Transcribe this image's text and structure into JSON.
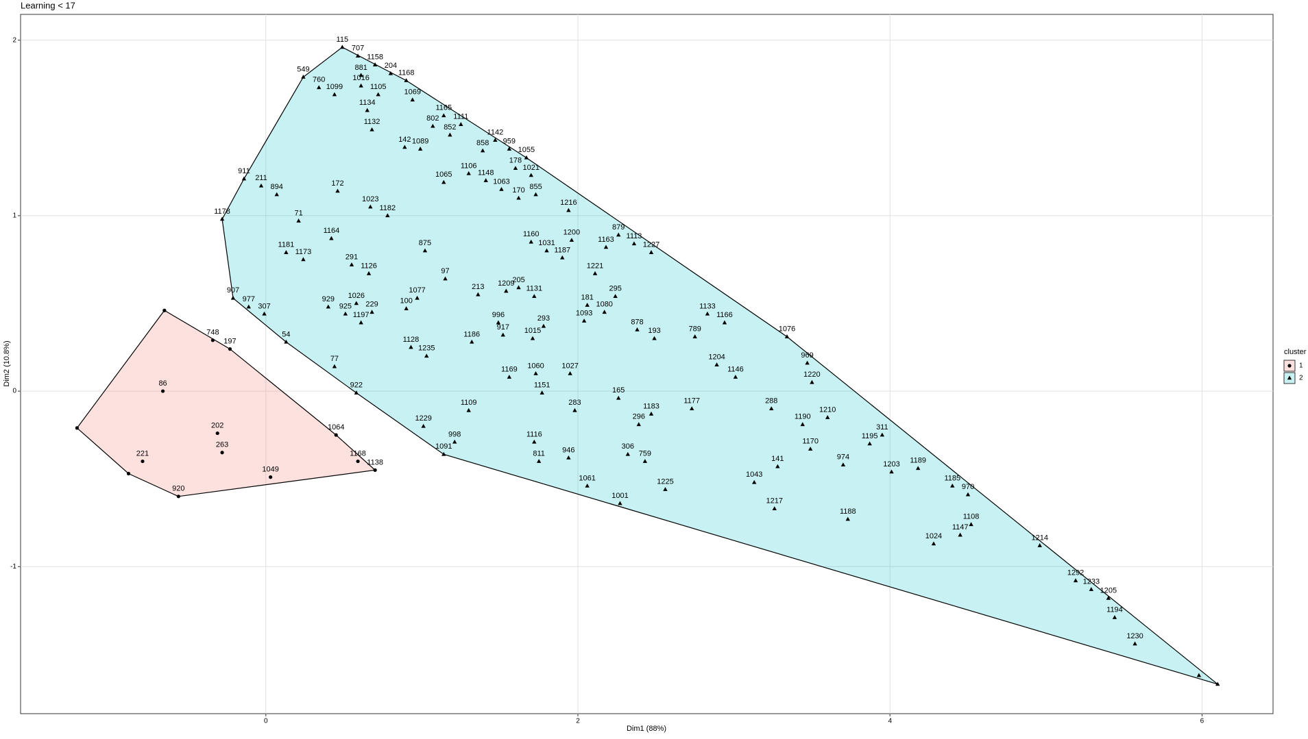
{
  "chart_data": {
    "type": "scatter",
    "title": "Learning < 17",
    "x_label": "Dim1 (88%)",
    "y_label": "Dim2 (10.8%)",
    "legend_title": "cluster",
    "legend_position": "right",
    "grid": true,
    "xlim": [
      -1.572,
      6.455
    ],
    "ylim": [
      -1.838,
      2.147
    ],
    "xticks": [
      0,
      2,
      4,
      6
    ],
    "yticks": [
      -1,
      0,
      1,
      2
    ],
    "series": [
      {
        "name": "1",
        "color": "#F8766D",
        "shape": "circle",
        "labels": [
          null,
          null,
          "748",
          "197",
          "86",
          "202",
          "221",
          "263",
          "1049",
          "1064",
          "1168",
          "1138",
          "920",
          null
        ],
        "x": [
          -1.21,
          -0.65,
          -0.34,
          -0.23,
          -0.66,
          -0.31,
          -0.79,
          -0.28,
          0.03,
          0.45,
          0.59,
          0.7,
          -0.56,
          -0.88
        ],
        "values": [
          -0.21,
          0.46,
          0.29,
          0.24,
          0.0,
          -0.24,
          -0.4,
          -0.35,
          -0.49,
          -0.25,
          -0.4,
          -0.45,
          -0.6,
          -0.47
        ]
      },
      {
        "name": "2",
        "color": "#00BFC4",
        "shape": "triangle",
        "labels": [
          "115",
          "707",
          "1158",
          "204",
          "1168",
          "881",
          "1016",
          "760",
          "1099",
          "1105",
          "1134",
          "1069",
          "1165",
          "1111",
          "802",
          "852",
          "1132",
          "142",
          "1089",
          "858",
          "1142",
          "959",
          "1055",
          "178",
          "1021",
          "1065",
          "1106",
          "1148",
          "1063",
          "170",
          "855",
          "911",
          "211",
          "894",
          "172",
          "1023",
          "1182",
          "71",
          "1164",
          "1181",
          "1173",
          "291",
          "1126",
          "875",
          "97",
          "213",
          "1209",
          "205",
          "1131",
          "1077",
          "100",
          "1026",
          "229",
          "929",
          "925",
          "1197",
          "907",
          "977",
          "307",
          "54",
          "77",
          "922",
          "1128",
          "1235",
          "1186",
          "917",
          "996",
          "1015",
          "293",
          "1160",
          "1031",
          "1200",
          "1187",
          "1221",
          "1163",
          "879",
          "1113",
          "1227",
          "1216",
          "181",
          "1093",
          "1080",
          "295",
          "878",
          "193",
          "789",
          "1133",
          "1166",
          "1076",
          "969",
          "1204",
          "1146",
          "1220",
          "1169",
          "1060",
          "1027",
          "1151",
          "283",
          "165",
          "1183",
          "296",
          "1177",
          "288",
          "1190",
          "1210",
          "311",
          "1195",
          "1170",
          "974",
          "1203",
          "1189",
          "1185",
          "970",
          "1108",
          "1147",
          "1024",
          "1214",
          "1292",
          "1233",
          "1205",
          "1194",
          "1230",
          null,
          null,
          "1229",
          "1109",
          "998",
          "1091",
          "1116",
          "811",
          "946",
          "306",
          "759",
          "1061",
          "1001",
          "1225",
          "141",
          "1043",
          "1217",
          "1188",
          "1178",
          "549"
        ],
        "x": [
          0.49,
          0.59,
          0.7,
          0.8,
          0.9,
          0.61,
          0.61,
          0.34,
          0.44,
          0.72,
          0.65,
          0.94,
          1.14,
          1.25,
          1.07,
          1.18,
          0.68,
          0.89,
          0.99,
          1.39,
          1.47,
          1.56,
          1.67,
          1.6,
          1.7,
          1.14,
          1.3,
          1.41,
          1.51,
          1.62,
          1.73,
          -0.14,
          -0.03,
          0.07,
          0.46,
          0.67,
          0.78,
          0.21,
          0.42,
          0.13,
          0.24,
          0.55,
          0.66,
          1.02,
          1.15,
          1.36,
          1.54,
          1.62,
          1.72,
          0.97,
          0.9,
          0.58,
          0.68,
          0.4,
          0.51,
          0.61,
          -0.21,
          -0.11,
          -0.01,
          0.13,
          0.44,
          0.58,
          0.93,
          1.03,
          1.32,
          1.52,
          1.49,
          1.71,
          1.78,
          1.7,
          1.8,
          1.96,
          1.9,
          2.11,
          2.18,
          2.26,
          2.36,
          2.47,
          1.94,
          2.06,
          2.04,
          2.17,
          2.24,
          2.38,
          2.49,
          2.75,
          2.83,
          2.94,
          3.34,
          3.47,
          2.89,
          3.01,
          3.5,
          1.56,
          1.73,
          1.95,
          1.77,
          1.98,
          2.26,
          2.47,
          2.39,
          2.73,
          3.24,
          3.44,
          3.6,
          3.95,
          3.87,
          3.49,
          3.7,
          4.01,
          4.18,
          4.4,
          4.5,
          4.52,
          4.45,
          4.28,
          4.96,
          5.19,
          5.29,
          5.4,
          5.44,
          5.57,
          6.1,
          5.98,
          1.01,
          1.3,
          1.21,
          1.14,
          1.72,
          1.75,
          1.94,
          2.32,
          2.43,
          2.06,
          2.27,
          2.56,
          3.28,
          3.13,
          3.26,
          3.73,
          -0.28,
          0.24
        ],
        "values": [
          1.96,
          1.91,
          1.86,
          1.81,
          1.77,
          1.8,
          1.74,
          1.73,
          1.69,
          1.69,
          1.6,
          1.66,
          1.57,
          1.52,
          1.51,
          1.46,
          1.49,
          1.39,
          1.38,
          1.37,
          1.43,
          1.38,
          1.33,
          1.27,
          1.23,
          1.19,
          1.24,
          1.2,
          1.15,
          1.1,
          1.12,
          1.21,
          1.17,
          1.12,
          1.14,
          1.05,
          1.0,
          0.97,
          0.87,
          0.79,
          0.75,
          0.72,
          0.67,
          0.8,
          0.64,
          0.55,
          0.57,
          0.59,
          0.54,
          0.53,
          0.47,
          0.5,
          0.45,
          0.48,
          0.44,
          0.39,
          0.53,
          0.48,
          0.44,
          0.28,
          0.14,
          -0.01,
          0.25,
          0.2,
          0.28,
          0.32,
          0.39,
          0.3,
          0.37,
          0.85,
          0.8,
          0.86,
          0.76,
          0.67,
          0.82,
          0.89,
          0.84,
          0.79,
          1.03,
          0.49,
          0.4,
          0.45,
          0.54,
          0.35,
          0.3,
          0.31,
          0.44,
          0.39,
          0.31,
          0.16,
          0.15,
          0.08,
          0.05,
          0.08,
          0.1,
          0.1,
          -0.01,
          -0.11,
          -0.04,
          -0.13,
          -0.19,
          -0.1,
          -0.1,
          -0.19,
          -0.15,
          -0.25,
          -0.3,
          -0.33,
          -0.42,
          -0.46,
          -0.44,
          -0.54,
          -0.59,
          -0.76,
          -0.82,
          -0.87,
          -0.88,
          -1.08,
          -1.13,
          -1.18,
          -1.29,
          -1.44,
          -1.67,
          -1.62,
          -0.2,
          -0.11,
          -0.29,
          -0.36,
          -0.29,
          -0.4,
          -0.38,
          -0.36,
          -0.4,
          -0.54,
          -0.64,
          -0.56,
          -0.43,
          -0.52,
          -0.67,
          -0.73,
          0.98,
          1.79
        ]
      }
    ]
  }
}
